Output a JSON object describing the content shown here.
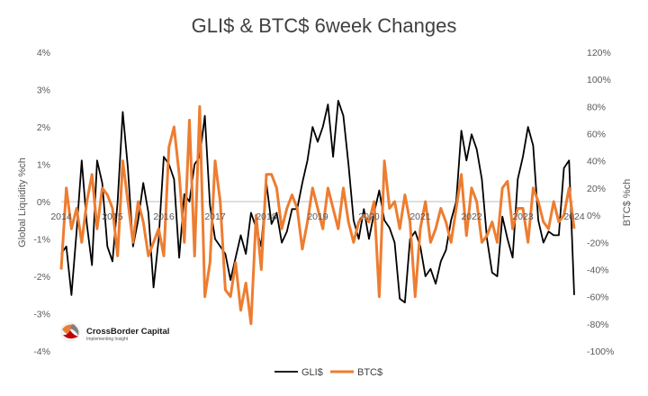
{
  "chart_data": {
    "type": "line",
    "title": "GLI$ & BTC$ 6week Changes",
    "ylabel_left": "Global Liquidity %ch",
    "ylabel_right": "BTC$ %ch",
    "ylim_left": [
      -4,
      4
    ],
    "ylim_right": [
      -100,
      120
    ],
    "xlim": [
      2014,
      2024
    ],
    "x_ticks": [
      "2014",
      "2015",
      "2016",
      "2017",
      "2018",
      "2019",
      "2020",
      "2021",
      "2022",
      "2023",
      "2024"
    ],
    "y_ticks_left": [
      "4%",
      "3%",
      "2%",
      "1%",
      "0%",
      "-1%",
      "-2%",
      "-3%",
      "-4%"
    ],
    "y_ticks_right": [
      "120%",
      "100%",
      "80%",
      "60%",
      "40%",
      "20%",
      "0%",
      "-20%",
      "-40%",
      "-60%",
      "-80%",
      "-100%"
    ],
    "grid": false,
    "legend_position": "bottom",
    "series": [
      {
        "name": "GLI$",
        "axis": "left",
        "color": "#000000",
        "x": [
          2014.0,
          2014.1,
          2014.2,
          2014.3,
          2014.4,
          2014.5,
          2014.6,
          2014.7,
          2014.8,
          2014.9,
          2015.0,
          2015.1,
          2015.2,
          2015.3,
          2015.4,
          2015.5,
          2015.6,
          2015.7,
          2015.8,
          2015.9,
          2016.0,
          2016.1,
          2016.2,
          2016.3,
          2016.4,
          2016.5,
          2016.6,
          2016.7,
          2016.8,
          2016.9,
          2017.0,
          2017.1,
          2017.2,
          2017.3,
          2017.4,
          2017.5,
          2017.6,
          2017.7,
          2017.8,
          2017.9,
          2018.0,
          2018.1,
          2018.2,
          2018.3,
          2018.4,
          2018.5,
          2018.6,
          2018.7,
          2018.8,
          2018.9,
          2019.0,
          2019.1,
          2019.2,
          2019.3,
          2019.4,
          2019.5,
          2019.6,
          2019.7,
          2019.8,
          2019.9,
          2020.0,
          2020.1,
          2020.2,
          2020.3,
          2020.4,
          2020.5,
          2020.6,
          2020.7,
          2020.8,
          2020.9,
          2021.0,
          2021.1,
          2021.2,
          2021.3,
          2021.4,
          2021.5,
          2021.6,
          2021.7,
          2021.8,
          2021.9,
          2022.0,
          2022.1,
          2022.2,
          2022.3,
          2022.4,
          2022.5,
          2022.6,
          2022.7,
          2022.8,
          2022.9,
          2023.0,
          2023.1,
          2023.2,
          2023.3,
          2023.4,
          2023.5,
          2023.6,
          2023.7,
          2023.8,
          2023.9,
          2024.0
        ],
        "values": [
          -1.4,
          -1.2,
          -2.5,
          -0.8,
          1.1,
          -0.6,
          -1.7,
          1.1,
          0.5,
          -1.2,
          -1.6,
          0.0,
          2.4,
          0.9,
          -1.2,
          -0.5,
          0.5,
          -0.3,
          -2.3,
          -1.0,
          1.2,
          1.0,
          0.6,
          -1.5,
          0.2,
          0.0,
          1.0,
          1.2,
          2.3,
          -0.1,
          -1.0,
          -1.2,
          -1.4,
          -2.1,
          -1.5,
          -0.9,
          -1.4,
          -0.3,
          -0.7,
          -1.2,
          0.5,
          -0.6,
          -0.3,
          -1.1,
          -0.8,
          -0.2,
          -0.2,
          0.5,
          1.1,
          2.0,
          1.6,
          2.0,
          2.6,
          1.2,
          2.7,
          2.3,
          1.0,
          -0.5,
          -1.0,
          -0.2,
          -1.0,
          -0.3,
          0.3,
          -0.5,
          -0.7,
          -1.1,
          -2.6,
          -2.7,
          -1.0,
          -0.8,
          -1.2,
          -2.0,
          -1.8,
          -2.2,
          -1.6,
          -1.3,
          -0.5,
          0.0,
          1.9,
          1.1,
          1.8,
          1.4,
          0.6,
          -1.0,
          -1.9,
          -2.0,
          -0.4,
          -1.0,
          -1.5,
          0.6,
          1.2,
          2.0,
          1.5,
          -0.5,
          -1.1,
          -0.8,
          -0.9,
          -0.9,
          0.9,
          1.1,
          -2.5
        ]
      },
      {
        "name": "BTC$",
        "axis": "right",
        "color": "#ED7D31",
        "x": [
          2014.0,
          2014.1,
          2014.2,
          2014.3,
          2014.4,
          2014.5,
          2014.6,
          2014.7,
          2014.8,
          2014.9,
          2015.0,
          2015.1,
          2015.2,
          2015.3,
          2015.4,
          2015.5,
          2015.6,
          2015.7,
          2015.8,
          2015.9,
          2016.0,
          2016.1,
          2016.2,
          2016.3,
          2016.4,
          2016.5,
          2016.6,
          2016.7,
          2016.8,
          2016.9,
          2017.0,
          2017.1,
          2017.2,
          2017.3,
          2017.4,
          2017.5,
          2017.6,
          2017.7,
          2017.8,
          2017.9,
          2018.0,
          2018.1,
          2018.2,
          2018.3,
          2018.4,
          2018.5,
          2018.6,
          2018.7,
          2018.8,
          2018.9,
          2019.0,
          2019.1,
          2019.2,
          2019.3,
          2019.4,
          2019.5,
          2019.6,
          2019.7,
          2019.8,
          2019.9,
          2020.0,
          2020.1,
          2020.2,
          2020.3,
          2020.4,
          2020.5,
          2020.6,
          2020.7,
          2020.8,
          2020.9,
          2021.0,
          2021.1,
          2021.2,
          2021.3,
          2021.4,
          2021.5,
          2021.6,
          2021.7,
          2021.8,
          2021.9,
          2022.0,
          2022.1,
          2022.2,
          2022.3,
          2022.4,
          2022.5,
          2022.6,
          2022.7,
          2022.8,
          2022.9,
          2023.0,
          2023.1,
          2023.2,
          2023.3,
          2023.4,
          2023.5,
          2023.6,
          2023.7,
          2023.8,
          2023.9,
          2024.0
        ],
        "values": [
          -40,
          20,
          -10,
          5,
          -20,
          10,
          30,
          -10,
          20,
          15,
          5,
          -30,
          40,
          10,
          -20,
          10,
          -5,
          -30,
          -20,
          -10,
          -30,
          50,
          65,
          30,
          -20,
          70,
          -30,
          80,
          -60,
          -35,
          40,
          10,
          -55,
          -60,
          -35,
          -70,
          -50,
          -80,
          0,
          -40,
          30,
          30,
          20,
          -10,
          5,
          15,
          5,
          -25,
          -5,
          20,
          5,
          -10,
          20,
          5,
          -10,
          20,
          -5,
          -20,
          -5,
          0,
          -5,
          10,
          -60,
          40,
          5,
          10,
          -10,
          15,
          -5,
          -60,
          -10,
          10,
          -20,
          -10,
          5,
          -5,
          -20,
          5,
          30,
          -15,
          20,
          10,
          -20,
          -15,
          -5,
          -20,
          20,
          25,
          -10,
          5,
          5,
          -20,
          20,
          10,
          -5,
          -10,
          10,
          -5,
          0,
          20,
          -10
        ]
      }
    ]
  },
  "logo": {
    "name": "CrossBorder Capital",
    "tagline": "Implementing Insight"
  }
}
